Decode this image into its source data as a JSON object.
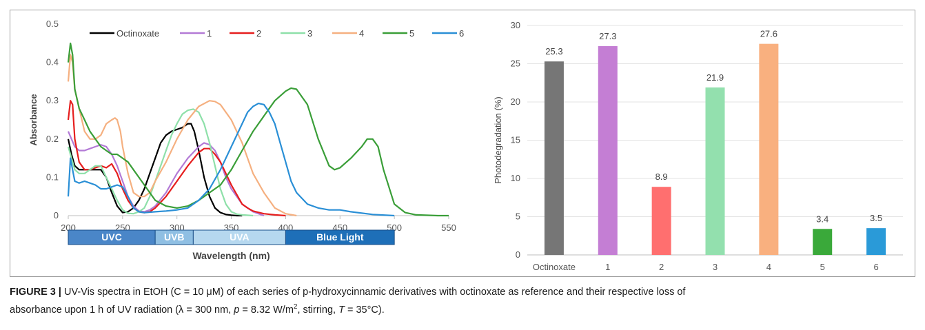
{
  "chart_data": [
    {
      "type": "line",
      "xlabel": "Wavelength (nm)",
      "ylabel": "Absorbance",
      "xlim": [
        200,
        550
      ],
      "ylim": [
        0,
        0.5
      ],
      "x_ticks": [
        "200",
        "250",
        "300",
        "350",
        "400",
        "450",
        "500",
        "550"
      ],
      "y_ticks": [
        "0",
        "0.1",
        "0.2",
        "0.3",
        "0.4",
        "0.5"
      ],
      "grid": false,
      "legend": "top",
      "series": [
        {
          "name": "Octinoxate",
          "color": "#000000",
          "x": [
            200,
            203,
            206,
            210,
            215,
            220,
            225,
            230,
            235,
            240,
            245,
            250,
            255,
            260,
            265,
            270,
            275,
            280,
            285,
            290,
            295,
            300,
            305,
            310,
            313,
            316,
            320,
            325,
            330,
            335,
            340,
            345,
            350,
            355,
            360
          ],
          "y": [
            0.2,
            0.16,
            0.13,
            0.12,
            0.12,
            0.12,
            0.12,
            0.12,
            0.1,
            0.06,
            0.025,
            0.008,
            0.01,
            0.02,
            0.04,
            0.07,
            0.11,
            0.15,
            0.19,
            0.21,
            0.22,
            0.225,
            0.23,
            0.24,
            0.24,
            0.22,
            0.17,
            0.1,
            0.05,
            0.02,
            0.008,
            0.003,
            0.001,
            0,
            0
          ]
        },
        {
          "name": "1",
          "color": "#b37ad6",
          "x": [
            200,
            203,
            206,
            210,
            215,
            220,
            225,
            230,
            235,
            240,
            245,
            250,
            255,
            260,
            265,
            270,
            275,
            280,
            290,
            300,
            310,
            320,
            325,
            330,
            335,
            340,
            345,
            350,
            360,
            370,
            380
          ],
          "y": [
            0.22,
            0.2,
            0.18,
            0.17,
            0.17,
            0.175,
            0.18,
            0.185,
            0.18,
            0.16,
            0.13,
            0.09,
            0.05,
            0.025,
            0.012,
            0.01,
            0.015,
            0.025,
            0.06,
            0.11,
            0.15,
            0.18,
            0.19,
            0.185,
            0.17,
            0.14,
            0.1,
            0.07,
            0.03,
            0.01,
            0
          ]
        },
        {
          "name": "2",
          "color": "#e61e1e",
          "x": [
            200,
            202,
            204,
            206,
            210,
            215,
            220,
            225,
            230,
            235,
            240,
            245,
            250,
            255,
            260,
            265,
            270,
            275,
            280,
            285,
            290,
            300,
            310,
            320,
            325,
            330,
            335,
            340,
            345,
            350,
            355,
            360,
            365,
            370,
            380,
            390,
            400
          ],
          "y": [
            0.25,
            0.3,
            0.29,
            0.2,
            0.14,
            0.12,
            0.12,
            0.125,
            0.13,
            0.125,
            0.135,
            0.11,
            0.07,
            0.04,
            0.02,
            0.01,
            0.008,
            0.01,
            0.02,
            0.035,
            0.05,
            0.09,
            0.13,
            0.165,
            0.175,
            0.175,
            0.16,
            0.14,
            0.11,
            0.08,
            0.055,
            0.03,
            0.02,
            0.012,
            0.005,
            0.002,
            0
          ]
        },
        {
          "name": "3",
          "color": "#8ee0a9",
          "x": [
            200,
            203,
            206,
            210,
            215,
            220,
            225,
            230,
            235,
            240,
            245,
            250,
            255,
            260,
            265,
            270,
            275,
            280,
            285,
            290,
            295,
            300,
            305,
            310,
            315,
            320,
            325,
            330,
            335,
            340,
            345,
            350,
            355,
            360,
            370
          ],
          "y": [
            0.18,
            0.15,
            0.12,
            0.11,
            0.11,
            0.12,
            0.13,
            0.13,
            0.1,
            0.07,
            0.04,
            0.015,
            0.006,
            0.005,
            0.01,
            0.02,
            0.05,
            0.09,
            0.13,
            0.17,
            0.21,
            0.24,
            0.265,
            0.275,
            0.278,
            0.27,
            0.24,
            0.19,
            0.13,
            0.07,
            0.03,
            0.01,
            0.004,
            0.002,
            0
          ]
        },
        {
          "name": "4",
          "color": "#f5b080",
          "x": [
            200,
            202,
            204,
            206,
            210,
            215,
            220,
            225,
            230,
            235,
            240,
            243,
            245,
            248,
            250,
            255,
            260,
            265,
            270,
            275,
            280,
            290,
            300,
            310,
            320,
            330,
            335,
            340,
            350,
            360,
            365,
            370,
            380,
            390,
            400,
            410
          ],
          "y": [
            0.35,
            0.42,
            0.4,
            0.33,
            0.28,
            0.22,
            0.2,
            0.2,
            0.21,
            0.24,
            0.25,
            0.255,
            0.25,
            0.22,
            0.18,
            0.11,
            0.06,
            0.05,
            0.05,
            0.06,
            0.09,
            0.14,
            0.2,
            0.25,
            0.285,
            0.3,
            0.298,
            0.29,
            0.25,
            0.19,
            0.15,
            0.11,
            0.06,
            0.02,
            0.005,
            0
          ]
        },
        {
          "name": "5",
          "color": "#3a9e38",
          "x": [
            200,
            202,
            204,
            206,
            210,
            215,
            220,
            225,
            230,
            235,
            240,
            245,
            250,
            255,
            260,
            265,
            270,
            275,
            280,
            290,
            300,
            310,
            320,
            330,
            340,
            350,
            360,
            370,
            380,
            390,
            400,
            405,
            410,
            420,
            430,
            440,
            445,
            450,
            460,
            470,
            475,
            480,
            485,
            490,
            500,
            510,
            520,
            540,
            550
          ],
          "y": [
            0.4,
            0.45,
            0.42,
            0.33,
            0.28,
            0.25,
            0.22,
            0.2,
            0.18,
            0.17,
            0.16,
            0.16,
            0.15,
            0.14,
            0.12,
            0.1,
            0.08,
            0.06,
            0.04,
            0.025,
            0.02,
            0.025,
            0.04,
            0.06,
            0.08,
            0.12,
            0.17,
            0.22,
            0.26,
            0.3,
            0.325,
            0.333,
            0.33,
            0.29,
            0.2,
            0.13,
            0.12,
            0.125,
            0.15,
            0.18,
            0.2,
            0.2,
            0.18,
            0.12,
            0.03,
            0.008,
            0.002,
            0,
            0
          ]
        },
        {
          "name": "6",
          "color": "#2a8fd6",
          "x": [
            200,
            202,
            204,
            206,
            210,
            215,
            220,
            225,
            230,
            235,
            240,
            245,
            250,
            255,
            260,
            265,
            270,
            280,
            290,
            300,
            310,
            320,
            330,
            340,
            350,
            360,
            365,
            370,
            375,
            380,
            385,
            390,
            395,
            400,
            405,
            410,
            420,
            430,
            440,
            450,
            460,
            480,
            500
          ],
          "y": [
            0.05,
            0.15,
            0.12,
            0.09,
            0.085,
            0.09,
            0.085,
            0.08,
            0.07,
            0.07,
            0.075,
            0.08,
            0.075,
            0.05,
            0.02,
            0.01,
            0.008,
            0.01,
            0.012,
            0.015,
            0.02,
            0.04,
            0.07,
            0.12,
            0.18,
            0.24,
            0.27,
            0.285,
            0.293,
            0.29,
            0.27,
            0.24,
            0.19,
            0.14,
            0.09,
            0.06,
            0.03,
            0.02,
            0.015,
            0.015,
            0.01,
            0.003,
            0
          ]
        }
      ],
      "spectrum_bands": [
        {
          "label": "UVC",
          "from": 200,
          "to": 280,
          "color": "#4a86c8"
        },
        {
          "label": "UVB",
          "from": 280,
          "to": 315,
          "color": "#8fbfe3"
        },
        {
          "label": "UVA",
          "from": 315,
          "to": 400,
          "color": "#b6d8ef"
        },
        {
          "label": "Blue Light",
          "from": 400,
          "to": 500,
          "color": "#1e6fb8"
        }
      ]
    },
    {
      "type": "bar",
      "ylabel": "Photodegradation (%)",
      "ylim": [
        0,
        30
      ],
      "y_ticks": [
        "0",
        "5",
        "10",
        "15",
        "20",
        "25",
        "30"
      ],
      "grid": true,
      "categories": [
        "Octinoxate",
        "1",
        "2",
        "3",
        "4",
        "5",
        "6"
      ],
      "values": [
        25.3,
        27.3,
        8.9,
        21.9,
        27.6,
        3.4,
        3.5
      ],
      "labels": [
        "25.3",
        "27.3",
        "8.9",
        "21.9",
        "27.6",
        "3.4",
        "3.5"
      ],
      "colors": [
        "#767676",
        "#c47ed4",
        "#ff6f6f",
        "#93e0ae",
        "#f9b07f",
        "#3aa93a",
        "#2a9ad8"
      ]
    }
  ],
  "caption": {
    "label": "FIGURE 3 |",
    "line1": "UV-Vis spectra in EtOH (C = 10 μM) of each series of p-hydroxycinnamic derivatives with octinoxate as reference and their respective loss of",
    "line2_a": "absorbance upon 1 h of UV radiation (λ = 300 nm, ",
    "p": "p",
    "line2_b": " = 8.32 W/m",
    "sup": "2",
    "line2_c": ", stirring, ",
    "T": "T",
    "line2_d": " = 35°C)."
  }
}
